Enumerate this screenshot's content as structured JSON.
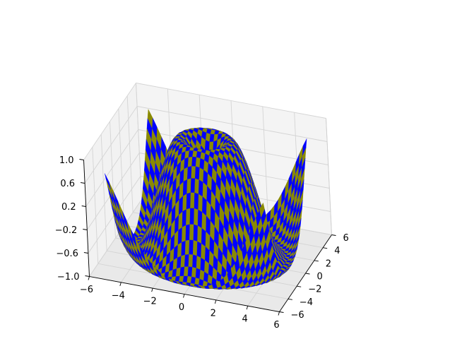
{
  "chart_data": {
    "type": "surface3d",
    "function": "z = sin(sqrt(x^2 + y^2))",
    "x_range": [
      -5,
      5
    ],
    "y_range": [
      -5,
      5
    ],
    "z_range": [
      -1.0,
      1.0
    ],
    "surface_pattern": "checkerboard",
    "facecolors": [
      "#0000ff",
      "#8a8a00"
    ],
    "grid": true,
    "pane_color": "#f2f2f2",
    "xaxis": {
      "ticks": [
        -6,
        -4,
        -2,
        0,
        2,
        4,
        6
      ],
      "ticklabels": [
        "−6",
        "−4",
        "−2",
        "0",
        "2",
        "4",
        "6"
      ]
    },
    "yaxis": {
      "ticks": [
        -6,
        -4,
        -2,
        0,
        2,
        4,
        6
      ],
      "ticklabels": [
        "−6",
        "−4",
        "−2",
        "0",
        "2",
        "4",
        "6"
      ]
    },
    "zaxis": {
      "ticks": [
        -1.0,
        -0.6,
        -0.2,
        0.2,
        0.6,
        1.0
      ],
      "ticklabels": [
        "−1.0",
        "−0.6",
        "−0.2",
        "0.2",
        "0.6",
        "1.0"
      ]
    },
    "xlabel": "",
    "ylabel": "",
    "zlabel": "",
    "title": ""
  }
}
